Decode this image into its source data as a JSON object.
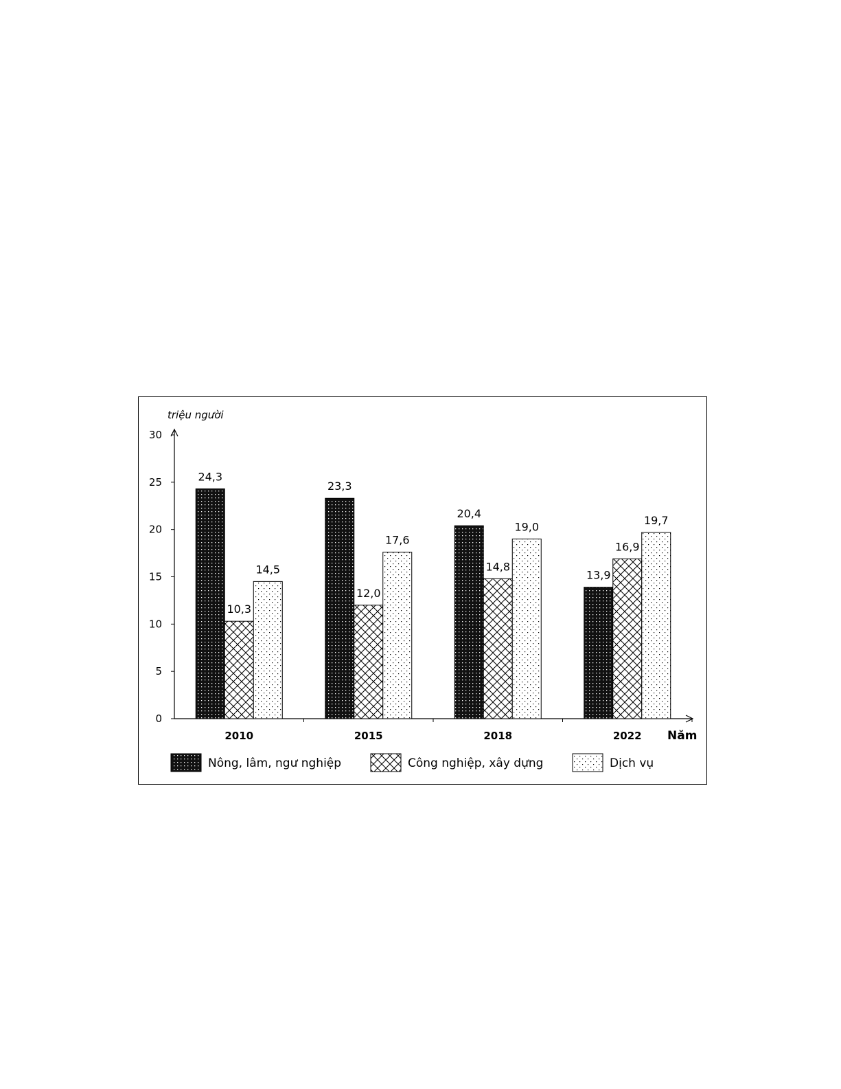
{
  "chart_data": {
    "type": "bar",
    "title": "",
    "ylabel": "triệu người",
    "xlabel": "Năm",
    "categories": [
      "2010",
      "2015",
      "2018",
      "2022"
    ],
    "series": [
      {
        "name": "Nông, lâm, ngư nghiệp",
        "values": [
          24.3,
          23.3,
          20.4,
          13.9
        ],
        "labels": [
          "24,3",
          "23,3",
          "20,4",
          "13,9"
        ],
        "pattern": "dense-dots-on-black"
      },
      {
        "name": "Công nghiệp, xây dựng",
        "values": [
          10.3,
          12.0,
          14.8,
          16.9
        ],
        "labels": [
          "10,3",
          "12,0",
          "14,8",
          "16,9"
        ],
        "pattern": "crosshatch"
      },
      {
        "name": "Dịch vụ",
        "values": [
          14.5,
          17.6,
          19.0,
          19.7
        ],
        "labels": [
          "14,5",
          "17,6",
          "19,0",
          "19,7"
        ],
        "pattern": "sparse-dots"
      }
    ],
    "ylim": [
      0,
      30
    ],
    "yticks": [
      0,
      5,
      10,
      15,
      20,
      25,
      30
    ],
    "ytick_labels": [
      "0",
      "5",
      "10",
      "15",
      "20",
      "25",
      "30"
    ],
    "grid": false,
    "legend_position": "bottom"
  }
}
